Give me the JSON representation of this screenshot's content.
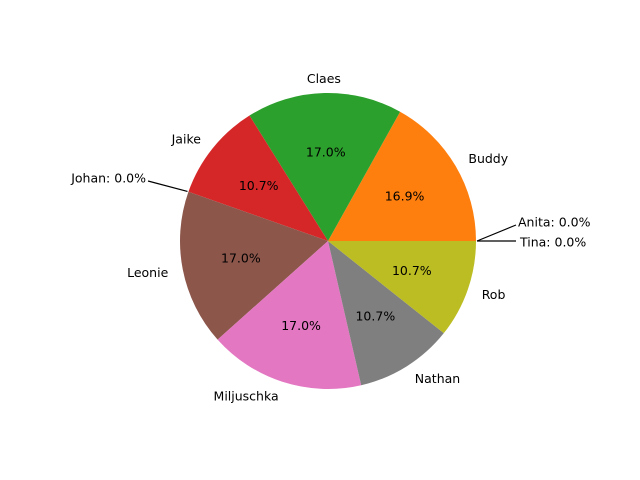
{
  "chart_data": {
    "type": "pie",
    "start_angle_deg": 0,
    "direction": "counterclockwise",
    "slices": [
      {
        "label": "Anita",
        "pct_text": "0.0%",
        "value": 0.0,
        "color": "#1f77b4",
        "callout": "Anita: 0.0%"
      },
      {
        "label": "Buddy",
        "pct_text": "16.9%",
        "value": 16.9,
        "color": "#ff7f0e"
      },
      {
        "label": "Claes",
        "pct_text": "17.0%",
        "value": 17.0,
        "color": "#2ca02c"
      },
      {
        "label": "Jaike",
        "pct_text": "10.7%",
        "value": 10.7,
        "color": "#d62728"
      },
      {
        "label": "Johan",
        "pct_text": "0.0%",
        "value": 0.0,
        "color": "#9467bd",
        "callout": "Johan: 0.0%"
      },
      {
        "label": "Leonie",
        "pct_text": "17.0%",
        "value": 17.0,
        "color": "#8c564b"
      },
      {
        "label": "Miljuschka",
        "pct_text": "17.0%",
        "value": 17.0,
        "color": "#e377c2"
      },
      {
        "label": "Nathan",
        "pct_text": "10.7%",
        "value": 10.7,
        "color": "#7f7f7f"
      },
      {
        "label": "Rob",
        "pct_text": "10.7%",
        "value": 10.7,
        "color": "#bcbd22"
      },
      {
        "label": "Tina",
        "pct_text": "0.0%",
        "value": 0.0,
        "color": "#17becf",
        "callout": "Tina: 0.0%"
      }
    ]
  }
}
